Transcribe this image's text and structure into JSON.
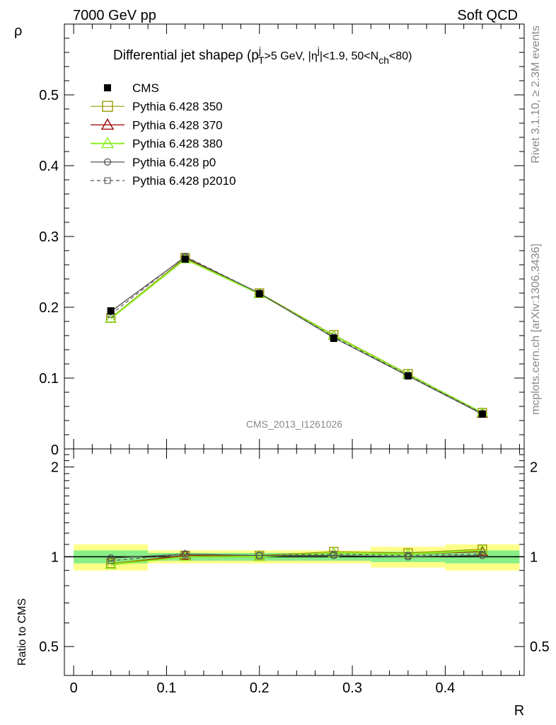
{
  "header": {
    "left": "7000 GeV pp",
    "right": "Soft QCD"
  },
  "side_text": {
    "rivet": "Rivet 3.1.10, ≥ 2.3M events",
    "mcplots": "mcplots.cern.ch [arXiv:1306.3436]"
  },
  "watermark": "CMS_2013_I1261026",
  "colors": {
    "cms": "#000000",
    "p350": "#999900",
    "p370": "#990000",
    "p380": "#88ee22",
    "p0": "#444444",
    "p2010": "#555555",
    "band_inner": "#88ee88",
    "band_outer": "#ffff88"
  },
  "chart_data": [
    {
      "type": "line",
      "title": "Differential jet shapeρ (p",
      "title_parts": {
        "pt": "T",
        "pt_sup": "j",
        "pt_rest": ">5 GeV, |η",
        "eta_sup": "j",
        "eta_rest": "|<1.9, 50<N",
        "nch_sub": "ch",
        "nch_rest": "<80)"
      },
      "ylabel": "ρ",
      "xlabel": "R",
      "xlim": [
        -0.01,
        0.485
      ],
      "ylim": [
        0,
        0.6
      ],
      "yticks": [
        0.1,
        0.2,
        0.3,
        0.4,
        0.5
      ],
      "yticklabels": [
        "0.1",
        "0.2",
        "0.3",
        "0.4",
        "0.5"
      ],
      "ytick_zero_label": "0",
      "x": [
        0.04,
        0.12,
        0.2,
        0.28,
        0.36,
        0.44
      ],
      "legend_position": "top-left",
      "series": [
        {
          "name": "CMS",
          "key": "cms",
          "values": [
            0.195,
            0.268,
            0.219,
            0.156,
            0.103,
            0.049
          ]
        },
        {
          "name": "Pythia 6.428 350",
          "key": "p350",
          "values": [
            0.185,
            0.27,
            0.22,
            0.161,
            0.106,
            0.051
          ]
        },
        {
          "name": "Pythia 6.428 370",
          "key": "p370",
          "values": [
            0.184,
            0.269,
            0.219,
            0.16,
            0.105,
            0.05
          ]
        },
        {
          "name": "Pythia 6.428 380",
          "key": "p380",
          "values": [
            0.184,
            0.268,
            0.219,
            0.16,
            0.105,
            0.051
          ]
        },
        {
          "name": "Pythia 6.428 p0",
          "key": "p0",
          "values": [
            0.194,
            0.271,
            0.22,
            0.157,
            0.103,
            0.049
          ]
        },
        {
          "name": "Pythia 6.428 p2010",
          "key": "p2010",
          "values": [
            0.19,
            0.272,
            0.22,
            0.158,
            0.104,
            0.05
          ]
        }
      ]
    },
    {
      "type": "line",
      "ylabel": "Ratio to CMS",
      "xlabel": "R",
      "xlim": [
        -0.01,
        0.485
      ],
      "ylim": [
        0.4,
        2.3
      ],
      "scale": "log",
      "yticks": [
        0.5,
        1,
        2
      ],
      "yticklabels": [
        "0.5",
        "1",
        "2"
      ],
      "xticks": [
        0,
        0.1,
        0.2,
        0.3,
        0.4
      ],
      "xticklabels": [
        "0",
        "0.1",
        "0.2",
        "0.3",
        "0.4"
      ],
      "bins": [
        [
          0,
          0.08
        ],
        [
          0.08,
          0.16
        ],
        [
          0.16,
          0.24
        ],
        [
          0.24,
          0.32
        ],
        [
          0.32,
          0.4
        ],
        [
          0.4,
          0.48
        ]
      ],
      "band_inner": [
        0.05,
        0.03,
        0.03,
        0.03,
        0.04,
        0.05
      ],
      "band_outer": [
        0.1,
        0.05,
        0.05,
        0.05,
        0.08,
        0.1
      ],
      "x": [
        0.04,
        0.12,
        0.2,
        0.28,
        0.36,
        0.44
      ],
      "series": [
        {
          "name": "Pythia 6.428 350",
          "key": "p350",
          "values": [
            0.95,
            1.01,
            1.01,
            1.04,
            1.03,
            1.06
          ]
        },
        {
          "name": "Pythia 6.428 370",
          "key": "p370",
          "values": [
            0.94,
            1.01,
            1.0,
            1.03,
            1.02,
            1.04
          ]
        },
        {
          "name": "Pythia 6.428 380",
          "key": "p380",
          "values": [
            0.94,
            1.0,
            1.0,
            1.03,
            1.02,
            1.05
          ]
        },
        {
          "name": "Pythia 6.428 p0",
          "key": "p0",
          "values": [
            0.99,
            1.02,
            1.01,
            1.01,
            1.0,
            1.01
          ]
        },
        {
          "name": "Pythia 6.428 p2010",
          "key": "p2010",
          "values": [
            0.97,
            1.02,
            1.01,
            1.02,
            1.01,
            1.02
          ]
        }
      ]
    }
  ]
}
